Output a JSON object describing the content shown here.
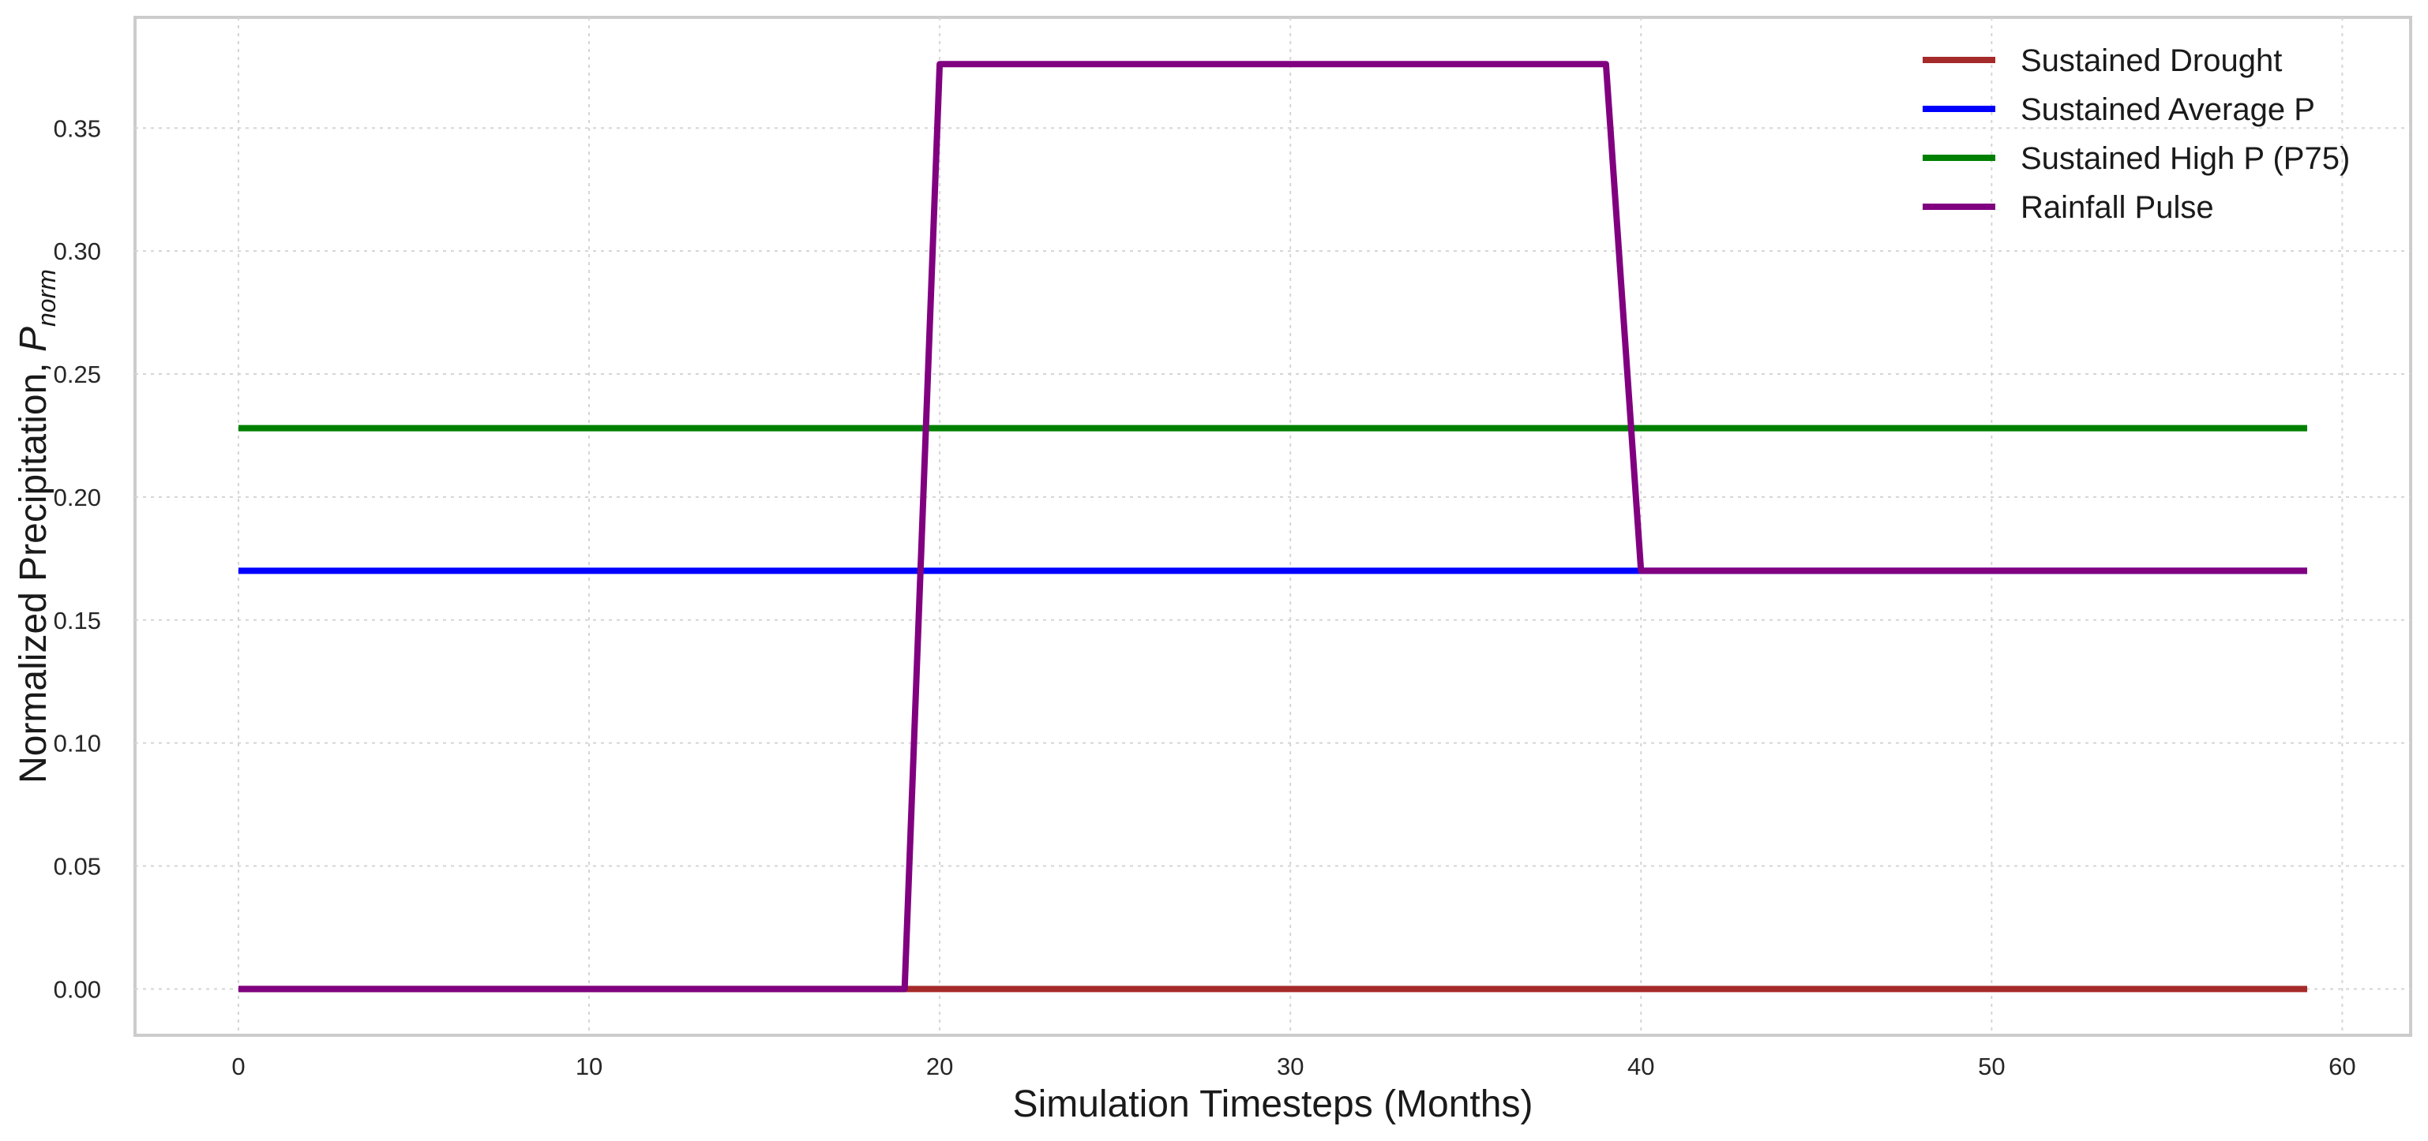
{
  "chart_data": {
    "type": "line",
    "title": "",
    "xlabel": "Simulation Timesteps (Months)",
    "ylabel": "Normalized Precipitation, ",
    "ylabel_symbol": "P",
    "ylabel_subscript": "norm",
    "xlim": [
      -2.95,
      61.95
    ],
    "ylim": [
      -0.0188,
      0.395
    ],
    "x_ticks": [
      0,
      10,
      20,
      30,
      40,
      50,
      60
    ],
    "x_tick_labels": [
      "0",
      "10",
      "20",
      "30",
      "40",
      "50",
      "60"
    ],
    "y_ticks": [
      0.0,
      0.05,
      0.1,
      0.15,
      0.2,
      0.25,
      0.3,
      0.35
    ],
    "y_tick_labels": [
      "0.00",
      "0.05",
      "0.10",
      "0.15",
      "0.20",
      "0.25",
      "0.30",
      "0.35"
    ],
    "grid": true,
    "legend_position": "top-right",
    "series": [
      {
        "name": "Sustained Drought",
        "color": "#a52a2a",
        "x": [
          0,
          59
        ],
        "y": [
          0.0,
          0.0
        ]
      },
      {
        "name": "Sustained Average P",
        "color": "#0000ff",
        "x": [
          0,
          59
        ],
        "y": [
          0.17,
          0.17
        ]
      },
      {
        "name": "Sustained High P (P75)",
        "color": "#008000",
        "x": [
          0,
          59
        ],
        "y": [
          0.228,
          0.228
        ]
      },
      {
        "name": "Rainfall Pulse",
        "color": "#800080",
        "x": [
          0,
          19,
          20,
          39,
          40,
          59
        ],
        "y": [
          0.0,
          0.0,
          0.376,
          0.376,
          0.17,
          0.17
        ]
      }
    ]
  }
}
